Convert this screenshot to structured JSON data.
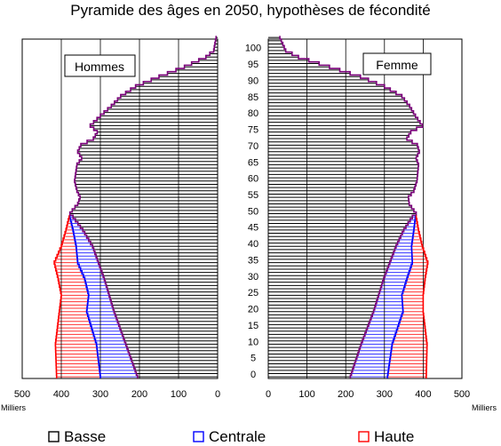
{
  "title": "Pyramide des âges en 2050, hypothèses de fécondité",
  "chart_data": {
    "type": "bar",
    "orientation": "horizontal-pyramid",
    "title": "Pyramide des âges en 2050, hypothèses de fécondité",
    "unit_label": "Milliers",
    "panels": [
      {
        "name": "Hommes",
        "side": "left"
      },
      {
        "name": "Femme",
        "side": "right"
      }
    ],
    "x_ticks": [
      500,
      400,
      300,
      200,
      100,
      0
    ],
    "x_ticks_right": [
      0,
      100,
      200,
      300,
      400,
      500
    ],
    "xlim": [
      0,
      500
    ],
    "age_ticks": [
      0,
      5,
      10,
      15,
      20,
      25,
      30,
      35,
      40,
      45,
      50,
      55,
      60,
      65,
      70,
      75,
      80,
      85,
      90,
      95,
      100
    ],
    "age_range": [
      0,
      104
    ],
    "legend": [
      {
        "name": "Basse",
        "color": "#000000"
      },
      {
        "name": "Centrale",
        "color": "#0000ff"
      },
      {
        "name": "Haute",
        "color": "#ff0000"
      }
    ],
    "series": {
      "hommes": {
        "basse": [
          {
            "age": 0,
            "value": 205
          },
          {
            "age": 10,
            "value": 235
          },
          {
            "age": 20,
            "value": 265
          },
          {
            "age": 30,
            "value": 290
          },
          {
            "age": 40,
            "value": 320
          },
          {
            "age": 45,
            "value": 345
          },
          {
            "age": 49,
            "value": 370
          },
          {
            "age": 50,
            "value": 378
          },
          {
            "age": 51,
            "value": 372
          },
          {
            "age": 53,
            "value": 358
          },
          {
            "age": 55,
            "value": 352
          },
          {
            "age": 57,
            "value": 360
          },
          {
            "age": 60,
            "value": 366
          },
          {
            "age": 65,
            "value": 360
          },
          {
            "age": 67,
            "value": 348
          },
          {
            "age": 69,
            "value": 358
          },
          {
            "age": 71,
            "value": 350
          },
          {
            "age": 73,
            "value": 318
          },
          {
            "age": 75,
            "value": 308
          },
          {
            "age": 77,
            "value": 326
          },
          {
            "age": 80,
            "value": 300
          },
          {
            "age": 83,
            "value": 272
          },
          {
            "age": 86,
            "value": 248
          },
          {
            "age": 89,
            "value": 210
          },
          {
            "age": 92,
            "value": 150
          },
          {
            "age": 95,
            "value": 85
          },
          {
            "age": 98,
            "value": 30
          },
          {
            "age": 100,
            "value": 10
          },
          {
            "age": 104,
            "value": 4
          }
        ],
        "centrale": [
          {
            "age": 0,
            "value": 300
          },
          {
            "age": 10,
            "value": 310
          },
          {
            "age": 20,
            "value": 335
          },
          {
            "age": 25,
            "value": 330
          },
          {
            "age": 30,
            "value": 340
          },
          {
            "age": 35,
            "value": 358
          },
          {
            "age": 40,
            "value": 362
          },
          {
            "age": 45,
            "value": 370
          },
          {
            "age": 49,
            "value": 378
          }
        ],
        "haute": [
          {
            "age": 0,
            "value": 412
          },
          {
            "age": 10,
            "value": 415
          },
          {
            "age": 20,
            "value": 405
          },
          {
            "age": 25,
            "value": 400
          },
          {
            "age": 30,
            "value": 408
          },
          {
            "age": 35,
            "value": 418
          },
          {
            "age": 40,
            "value": 400
          },
          {
            "age": 45,
            "value": 388
          },
          {
            "age": 49,
            "value": 380
          }
        ]
      },
      "femme": {
        "basse": [
          {
            "age": 0,
            "value": 212
          },
          {
            "age": 10,
            "value": 240
          },
          {
            "age": 20,
            "value": 272
          },
          {
            "age": 30,
            "value": 298
          },
          {
            "age": 40,
            "value": 330
          },
          {
            "age": 45,
            "value": 350
          },
          {
            "age": 49,
            "value": 372
          },
          {
            "age": 50,
            "value": 382
          },
          {
            "age": 51,
            "value": 376
          },
          {
            "age": 53,
            "value": 364
          },
          {
            "age": 55,
            "value": 362
          },
          {
            "age": 57,
            "value": 376
          },
          {
            "age": 60,
            "value": 384
          },
          {
            "age": 65,
            "value": 388
          },
          {
            "age": 67,
            "value": 382
          },
          {
            "age": 69,
            "value": 390
          },
          {
            "age": 71,
            "value": 385
          },
          {
            "age": 73,
            "value": 358
          },
          {
            "age": 75,
            "value": 368
          },
          {
            "age": 77,
            "value": 398
          },
          {
            "age": 80,
            "value": 380
          },
          {
            "age": 83,
            "value": 365
          },
          {
            "age": 86,
            "value": 345
          },
          {
            "age": 89,
            "value": 300
          },
          {
            "age": 92,
            "value": 238
          },
          {
            "age": 95,
            "value": 158
          },
          {
            "age": 98,
            "value": 78
          },
          {
            "age": 100,
            "value": 45
          },
          {
            "age": 104,
            "value": 30
          }
        ],
        "centrale": [
          {
            "age": 0,
            "value": 308
          },
          {
            "age": 10,
            "value": 320
          },
          {
            "age": 20,
            "value": 348
          },
          {
            "age": 25,
            "value": 345
          },
          {
            "age": 30,
            "value": 358
          },
          {
            "age": 35,
            "value": 372
          },
          {
            "age": 40,
            "value": 370
          },
          {
            "age": 45,
            "value": 376
          },
          {
            "age": 49,
            "value": 380
          }
        ],
        "haute": [
          {
            "age": 0,
            "value": 408
          },
          {
            "age": 10,
            "value": 410
          },
          {
            "age": 20,
            "value": 400
          },
          {
            "age": 25,
            "value": 400
          },
          {
            "age": 30,
            "value": 405
          },
          {
            "age": 35,
            "value": 412
          },
          {
            "age": 40,
            "value": 398
          },
          {
            "age": 45,
            "value": 388
          },
          {
            "age": 49,
            "value": 382
          }
        ]
      }
    }
  }
}
